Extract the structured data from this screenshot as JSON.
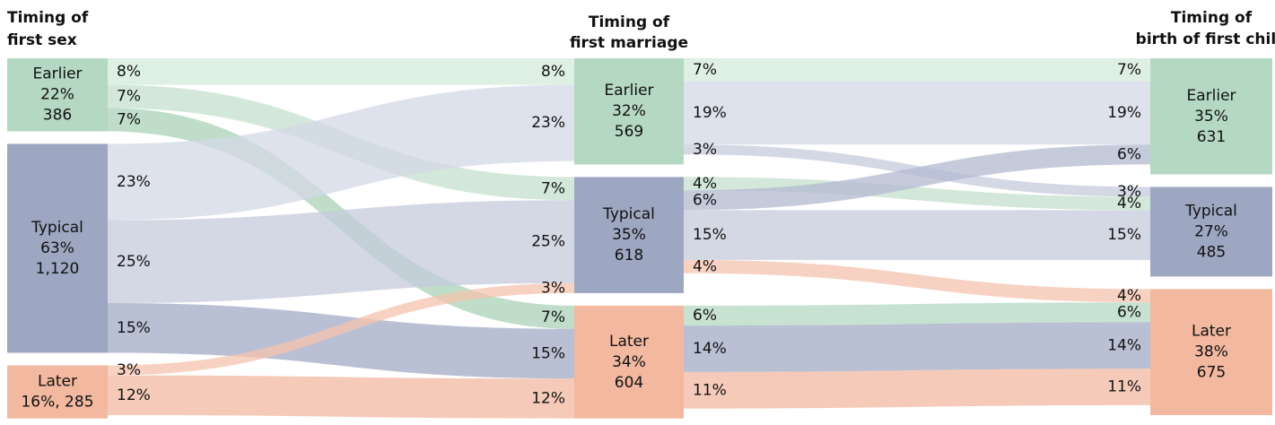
{
  "chart_data": {
    "type": "sankey",
    "stages": [
      {
        "title": [
          "Timing of",
          "first sex"
        ],
        "nodes": [
          {
            "name": "Earlier",
            "value": 22,
            "value_label": "22%",
            "count": 386,
            "color": "#b5d8c2"
          },
          {
            "name": "Typical",
            "value": 63,
            "value_label": "63%",
            "count": 1120,
            "count_label": "1,120",
            "color": "#9ea7c2"
          },
          {
            "name": "Later",
            "value": 16,
            "count": 285,
            "combined_label": "16%, 285",
            "color": "#f2b8a0"
          }
        ],
        "flows": [
          {
            "source": 0,
            "target": 0,
            "value": 8,
            "value_label": "8%",
            "color": "#d3e9db"
          },
          {
            "source": 0,
            "target": 1,
            "value": 7,
            "value_label": "7%",
            "color": "#c4e0cd"
          },
          {
            "source": 0,
            "target": 2,
            "value": 7,
            "value_label": "7%",
            "color": "#a9d1b6"
          },
          {
            "source": 1,
            "target": 0,
            "value": 23,
            "value_label": "23%",
            "color": "#d3d8e6"
          },
          {
            "source": 1,
            "target": 1,
            "value": 25,
            "value_label": "25%",
            "color": "#c5cbdc"
          },
          {
            "source": 1,
            "target": 2,
            "value": 15,
            "value_label": "15%",
            "color": "#a3abc6"
          },
          {
            "source": 2,
            "target": 1,
            "value": 3,
            "value_label": "3%",
            "color": "#f4c3ae"
          },
          {
            "source": 2,
            "target": 2,
            "value": 12,
            "value_label": "12%",
            "color": "#f2b8a0"
          }
        ]
      },
      {
        "title": [
          "Timing of",
          "first marriage"
        ],
        "nodes": [
          {
            "name": "Earlier",
            "value": 32,
            "value_label": "32%",
            "count": 569,
            "color": "#b5d8c2"
          },
          {
            "name": "Typical",
            "value": 35,
            "value_label": "35%",
            "count": 618,
            "color": "#9ea7c2"
          },
          {
            "name": "Later",
            "value": 34,
            "value_label": "34%",
            "count": 604,
            "color": "#f2b8a0"
          }
        ],
        "flows": [
          {
            "source": 0,
            "target": 0,
            "value": 7,
            "value_label": "7%",
            "color": "#d3e9db"
          },
          {
            "source": 0,
            "target": 0,
            "value": 19,
            "value_label": "19%",
            "color": "#d3d8e6"
          },
          {
            "source": 0,
            "target": 1,
            "value": 3,
            "value_label": "3%",
            "color": "#c5cbdc"
          },
          {
            "source": 1,
            "target": 1,
            "value": 4,
            "value_label": "4%",
            "color": "#c4e0cd"
          },
          {
            "source": 1,
            "target": 0,
            "value": 6,
            "value_label": "6%",
            "color": "#b3bad0"
          },
          {
            "source": 1,
            "target": 1,
            "value": 15,
            "value_label": "15%",
            "color": "#c5cbdc"
          },
          {
            "source": 1,
            "target": 2,
            "value": 4,
            "value_label": "4%",
            "color": "#f4c3ae"
          },
          {
            "source": 2,
            "target": 2,
            "value": 6,
            "value_label": "6%",
            "color": "#b5d8c2"
          },
          {
            "source": 2,
            "target": 2,
            "value": 14,
            "value_label": "14%",
            "color": "#a3abc6"
          },
          {
            "source": 2,
            "target": 2,
            "value": 11,
            "value_label": "11%",
            "color": "#f2b8a0"
          }
        ]
      },
      {
        "title": [
          "Timing of",
          "birth of first child"
        ],
        "nodes": [
          {
            "name": "Earlier",
            "value": 35,
            "value_label": "35%",
            "count": 631,
            "color": "#b5d8c2"
          },
          {
            "name": "Typical",
            "value": 27,
            "value_label": "27%",
            "count": 485,
            "color": "#9ea7c2"
          },
          {
            "name": "Later",
            "value": 38,
            "value_label": "38%",
            "count": 675,
            "color": "#f2b8a0"
          }
        ]
      }
    ]
  }
}
